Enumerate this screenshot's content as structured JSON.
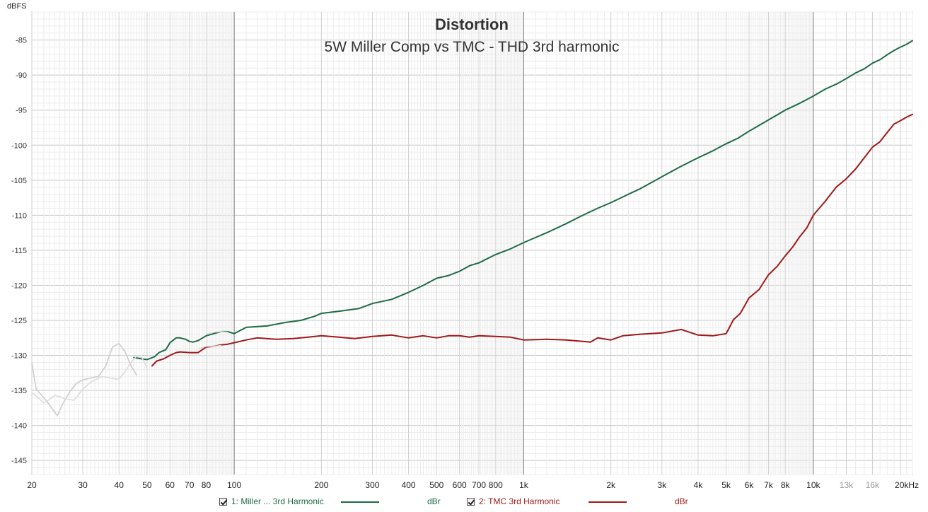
{
  "chart_data": {
    "type": "line",
    "title": "Distortion",
    "subtitle": "5W Miller Comp vs TMC - THD 3rd harmonic",
    "ylabel": "dBFS",
    "xscale": "log",
    "xlim": [
      20,
      22000
    ],
    "ylim": [
      -147,
      -81
    ],
    "yticks": [
      "-85",
      "-90",
      "-95",
      "-100",
      "-105",
      "-110",
      "-115",
      "-120",
      "-125",
      "-130",
      "-135",
      "-140",
      "-145"
    ],
    "xticks": [
      "20",
      "30",
      "40",
      "50",
      "60",
      "70",
      "80",
      "100",
      "200",
      "300",
      "400",
      "500",
      "600",
      "700",
      "800",
      "1k",
      "2k",
      "3k",
      "4k",
      "5k",
      "6k",
      "7k",
      "8k",
      "10k",
      "13k",
      "16k",
      "20kHz"
    ],
    "series": [
      {
        "name": "1: Miller ... 3rd Harmonic",
        "unit": "dBr",
        "color": "#1e6b47",
        "x": [
          45,
          48,
          50,
          53,
          55,
          58,
          60,
          63,
          65,
          68,
          70,
          72,
          75,
          80,
          85,
          90,
          95,
          100,
          110,
          130,
          150,
          170,
          190,
          200,
          230,
          270,
          300,
          350,
          400,
          450,
          500,
          550,
          600,
          650,
          700,
          800,
          900,
          1000,
          1200,
          1400,
          1600,
          1800,
          2000,
          2300,
          2500,
          2800,
          3000,
          3500,
          4000,
          4500,
          5000,
          5500,
          6000,
          7000,
          8000,
          9000,
          10000,
          11000,
          12000,
          13000,
          14000,
          15000,
          16000,
          17000,
          18000,
          19000,
          20000,
          21000,
          22000
        ],
        "y": [
          -130.3,
          -130.5,
          -130.6,
          -130.2,
          -129.6,
          -129.2,
          -128.2,
          -127.5,
          -127.5,
          -127.7,
          -128.0,
          -128.1,
          -127.9,
          -127.2,
          -126.9,
          -126.6,
          -126.6,
          -126.9,
          -126.0,
          -125.8,
          -125.3,
          -125.0,
          -124.4,
          -124.0,
          -123.7,
          -123.3,
          -122.6,
          -122.0,
          -121.0,
          -120.0,
          -119.0,
          -118.6,
          -118.0,
          -117.2,
          -116.8,
          -115.6,
          -114.8,
          -113.9,
          -112.5,
          -111.2,
          -110.0,
          -109.0,
          -108.2,
          -107.0,
          -106.3,
          -105.2,
          -104.5,
          -103.0,
          -101.8,
          -100.8,
          -99.8,
          -99.0,
          -98.0,
          -96.4,
          -95.0,
          -94.0,
          -93.0,
          -92.0,
          -91.3,
          -90.5,
          -89.7,
          -89.1,
          -88.3,
          -87.8,
          -87.1,
          -86.5,
          -86.0,
          -85.6,
          -85.1
        ]
      },
      {
        "name": "2: TMC 3rd Harmonic",
        "unit": "dBr",
        "color": "#a01818",
        "x": [
          52,
          54,
          57,
          60,
          63,
          65,
          70,
          75,
          80,
          85,
          90,
          95,
          100,
          110,
          120,
          140,
          160,
          180,
          200,
          230,
          260,
          300,
          350,
          400,
          450,
          500,
          550,
          600,
          650,
          700,
          800,
          900,
          1000,
          1200,
          1400,
          1600,
          1700,
          1800,
          2000,
          2200,
          2500,
          3000,
          3500,
          4000,
          4500,
          5000,
          5300,
          5600,
          6000,
          6500,
          7000,
          7500,
          8000,
          8500,
          9000,
          9500,
          10000,
          11000,
          12000,
          13000,
          14000,
          15000,
          16000,
          17000,
          18000,
          19000,
          20000,
          21000,
          22000
        ],
        "y": [
          -131.5,
          -130.8,
          -130.5,
          -130.0,
          -129.6,
          -129.5,
          -129.6,
          -129.6,
          -128.8,
          -128.7,
          -128.5,
          -128.4,
          -128.2,
          -127.8,
          -127.5,
          -127.7,
          -127.6,
          -127.4,
          -127.2,
          -127.4,
          -127.6,
          -127.3,
          -127.1,
          -127.5,
          -127.2,
          -127.5,
          -127.2,
          -127.2,
          -127.4,
          -127.2,
          -127.3,
          -127.4,
          -127.8,
          -127.7,
          -127.8,
          -128.0,
          -128.1,
          -127.5,
          -127.8,
          -127.2,
          -127.0,
          -126.8,
          -126.3,
          -127.1,
          -127.2,
          -126.9,
          -124.9,
          -124.0,
          -121.8,
          -120.6,
          -118.5,
          -117.3,
          -115.8,
          -114.5,
          -113.0,
          -111.8,
          -110.0,
          -108.0,
          -106.0,
          -104.8,
          -103.4,
          -101.8,
          -100.3,
          -99.5,
          -98.2,
          -97.0,
          -96.5,
          -96.0,
          -95.6
        ]
      },
      {
        "name": "",
        "color": "#cccccc",
        "x": [
          20,
          20.7,
          21.5,
          22.5,
          23.5,
          24.5,
          25.5,
          27,
          28.5,
          30,
          32,
          34,
          36,
          38,
          40,
          42,
          44,
          46
        ],
        "y": [
          -131.0,
          -134.8,
          -135.6,
          -136.5,
          -137.6,
          -138.6,
          -137.0,
          -135.2,
          -134.0,
          -133.5,
          -133.2,
          -133.0,
          -131.5,
          -128.8,
          -128.3,
          -129.5,
          -131.5,
          -132.8
        ]
      },
      {
        "name": "",
        "color": "#dcdcdc",
        "x": [
          20,
          21,
          22,
          23,
          24,
          25,
          26,
          28,
          30,
          32,
          35,
          38,
          40,
          42,
          44,
          46,
          48,
          50
        ],
        "y": [
          -135.3,
          -136.0,
          -136.8,
          -136.3,
          -135.7,
          -135.9,
          -136.2,
          -136.4,
          -134.8,
          -133.8,
          -133.0,
          -133.3,
          -133.4,
          -132.3,
          -131.0,
          -130.1,
          -130.3,
          -131.8
        ]
      },
      {
        "name": "",
        "color": "#dcdcdc",
        "x": [
          80,
          85,
          90,
          95
        ],
        "y": [
          -127.0,
          -126.7,
          -126.6,
          -126.7
        ]
      },
      {
        "name": "",
        "color": "#dcdcdc",
        "x": [
          76,
          80,
          85,
          90
        ],
        "y": [
          -129.0,
          -128.7,
          -128.7,
          -128.6
        ]
      }
    ]
  },
  "legend": {
    "items": [
      {
        "label": "1: Miller ... 3rd Harmonic",
        "unit": "dBr",
        "color": "#1e6b47"
      },
      {
        "label": "2: TMC 3rd Harmonic",
        "unit": "dBr",
        "color": "#a01818"
      }
    ]
  }
}
